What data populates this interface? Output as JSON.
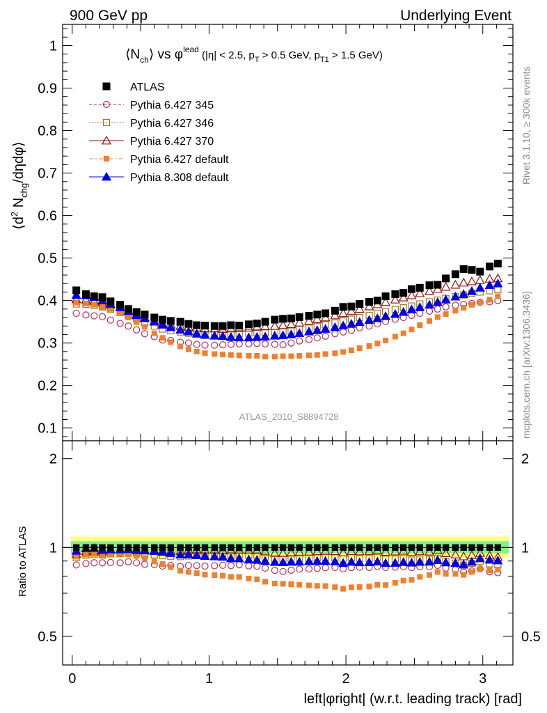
{
  "header": {
    "left": "900 GeV pp",
    "right": "Underlying Event",
    "right_vertical_top": "Rivet 3.1.10, ≥ 300k events",
    "right_vertical_bottom": "mcplots.cern.ch [arXiv:1306.3436]"
  },
  "chart_data": {
    "type": "scatter",
    "title_parts": {
      "a": "⟨N",
      "a_sub": "ch",
      "b": "⟩ vs φ",
      "b_sup": "lead",
      "c": " (|η| < 2.5, p",
      "c_sub": "T",
      "d": " > 0.5 GeV, p",
      "d_sub": "T1",
      "e": " > 1.5 GeV)"
    },
    "ylabel_parts": {
      "a": "⟨d",
      "a_sup": "2",
      "b": " N",
      "b_sub": "chg",
      "c": "/dηdφ⟩"
    },
    "ratio_ylabel": "Ratio to ATLAS",
    "xlabel": "left|φright| (w.r.t. leading track) [rad]",
    "watermark": "ATLAS_2010_S8894728",
    "xlim": [
      -0.07,
      3.22
    ],
    "ylim": [
      0.07,
      1.05
    ],
    "ratio_ylim": [
      0.4,
      2.3
    ],
    "x_ticks": [
      "0",
      "1",
      "2",
      "3"
    ],
    "y_ticks": [
      "0.1",
      "0.2",
      "0.3",
      "0.4",
      "0.5",
      "0.6",
      "0.7",
      "0.8",
      "0.9",
      "1"
    ],
    "ratio_ticks": [
      "0.5",
      "1",
      "2"
    ],
    "x": [
      0.03,
      0.1,
      0.16,
      0.22,
      0.28,
      0.35,
      0.41,
      0.47,
      0.53,
      0.6,
      0.66,
      0.72,
      0.79,
      0.85,
      0.91,
      0.97,
      1.04,
      1.1,
      1.16,
      1.22,
      1.29,
      1.35,
      1.41,
      1.48,
      1.54,
      1.6,
      1.66,
      1.73,
      1.79,
      1.85,
      1.92,
      1.98,
      2.04,
      2.1,
      2.17,
      2.23,
      2.29,
      2.36,
      2.42,
      2.48,
      2.54,
      2.61,
      2.67,
      2.73,
      2.8,
      2.86,
      2.92,
      2.98,
      3.05,
      3.11
    ],
    "series": [
      {
        "name": "ATLAS",
        "style": "square-filled",
        "color": "#000000",
        "values": [
          0.424,
          0.415,
          0.41,
          0.408,
          0.398,
          0.39,
          0.38,
          0.373,
          0.367,
          0.36,
          0.355,
          0.352,
          0.35,
          0.345,
          0.342,
          0.341,
          0.34,
          0.34,
          0.342,
          0.341,
          0.344,
          0.346,
          0.35,
          0.355,
          0.357,
          0.358,
          0.361,
          0.364,
          0.367,
          0.37,
          0.376,
          0.385,
          0.386,
          0.392,
          0.397,
          0.4,
          0.41,
          0.415,
          0.418,
          0.427,
          0.43,
          0.436,
          0.437,
          0.452,
          0.462,
          0.474,
          0.472,
          0.468,
          0.48,
          0.487
        ]
      },
      {
        "name": "Pythia 6.427 345",
        "style": "circle-open",
        "color": "#b03050",
        "values": [
          0.37,
          0.366,
          0.364,
          0.362,
          0.354,
          0.346,
          0.34,
          0.331,
          0.322,
          0.315,
          0.307,
          0.306,
          0.302,
          0.3,
          0.297,
          0.295,
          0.295,
          0.296,
          0.297,
          0.298,
          0.298,
          0.299,
          0.298,
          0.297,
          0.296,
          0.3,
          0.305,
          0.308,
          0.312,
          0.316,
          0.322,
          0.326,
          0.33,
          0.336,
          0.34,
          0.345,
          0.351,
          0.356,
          0.36,
          0.365,
          0.37,
          0.375,
          0.38,
          0.385,
          0.389,
          0.391,
          0.393,
          0.396,
          0.397,
          0.4
        ]
      },
      {
        "name": "Pythia 6.427 346",
        "style": "square-open",
        "color": "#a07828",
        "values": [
          0.392,
          0.391,
          0.388,
          0.385,
          0.379,
          0.372,
          0.365,
          0.357,
          0.348,
          0.34,
          0.333,
          0.329,
          0.326,
          0.323,
          0.321,
          0.32,
          0.32,
          0.321,
          0.321,
          0.322,
          0.324,
          0.324,
          0.325,
          0.325,
          0.326,
          0.328,
          0.332,
          0.335,
          0.339,
          0.343,
          0.347,
          0.352,
          0.356,
          0.36,
          0.365,
          0.37,
          0.374,
          0.379,
          0.383,
          0.387,
          0.392,
          0.397,
          0.401,
          0.405,
          0.409,
          0.413,
          0.417,
          0.42,
          0.423,
          0.426
        ]
      },
      {
        "name": "Pythia 6.427 370",
        "style": "triangle-open",
        "color": "#901010",
        "values": [
          0.403,
          0.402,
          0.399,
          0.395,
          0.39,
          0.384,
          0.376,
          0.368,
          0.36,
          0.352,
          0.346,
          0.343,
          0.34,
          0.338,
          0.336,
          0.334,
          0.334,
          0.333,
          0.334,
          0.335,
          0.336,
          0.338,
          0.339,
          0.34,
          0.342,
          0.344,
          0.348,
          0.352,
          0.356,
          0.36,
          0.365,
          0.37,
          0.375,
          0.38,
          0.386,
          0.391,
          0.396,
          0.402,
          0.407,
          0.412,
          0.417,
          0.422,
          0.427,
          0.432,
          0.437,
          0.442,
          0.445,
          0.448,
          0.451,
          0.452
        ]
      },
      {
        "name": "Pythia 6.427 default",
        "style": "square-filled-small",
        "color": "#f08030",
        "values": [
          0.395,
          0.393,
          0.39,
          0.385,
          0.38,
          0.371,
          0.36,
          0.349,
          0.338,
          0.323,
          0.312,
          0.302,
          0.292,
          0.285,
          0.28,
          0.276,
          0.274,
          0.273,
          0.272,
          0.271,
          0.27,
          0.27,
          0.268,
          0.268,
          0.269,
          0.269,
          0.27,
          0.271,
          0.272,
          0.274,
          0.276,
          0.279,
          0.283,
          0.288,
          0.293,
          0.299,
          0.306,
          0.315,
          0.323,
          0.332,
          0.342,
          0.352,
          0.361,
          0.368,
          0.376,
          0.383,
          0.39,
          0.396,
          0.402,
          0.41
        ]
      },
      {
        "name": "Pythia 8.308 default",
        "style": "triangle-filled",
        "color": "#0000e0",
        "values": [
          0.413,
          0.412,
          0.408,
          0.4,
          0.392,
          0.384,
          0.375,
          0.365,
          0.358,
          0.35,
          0.343,
          0.337,
          0.331,
          0.327,
          0.322,
          0.319,
          0.317,
          0.316,
          0.314,
          0.313,
          0.313,
          0.314,
          0.315,
          0.317,
          0.318,
          0.32,
          0.323,
          0.327,
          0.33,
          0.333,
          0.337,
          0.341,
          0.345,
          0.349,
          0.354,
          0.358,
          0.363,
          0.368,
          0.373,
          0.379,
          0.384,
          0.39,
          0.396,
          0.402,
          0.409,
          0.415,
          0.422,
          0.43,
          0.436,
          0.44
        ]
      }
    ]
  }
}
